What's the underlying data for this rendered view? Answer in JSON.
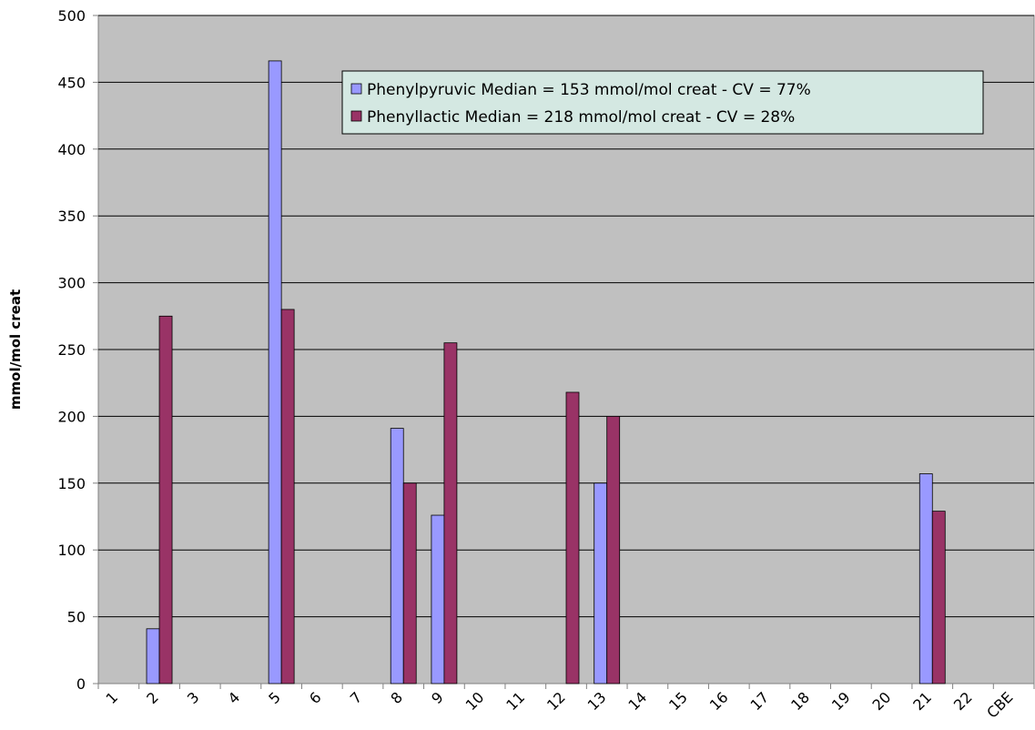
{
  "chart_data": {
    "type": "bar",
    "y_label": "mmol/mol creat",
    "categories": [
      "1",
      "2",
      "3",
      "4",
      "5",
      "6",
      "7",
      "8",
      "9",
      "10",
      "11",
      "12",
      "13",
      "14",
      "15",
      "16",
      "17",
      "18",
      "19",
      "20",
      "21",
      "22",
      "CBE"
    ],
    "series": [
      {
        "name": "Phenylpyruvic Median = 153 mmol/mol creat - CV = 77%",
        "color": "#9999ff",
        "values": [
          null,
          41,
          null,
          null,
          466,
          null,
          null,
          191,
          126,
          null,
          null,
          null,
          150,
          null,
          null,
          null,
          null,
          null,
          null,
          null,
          157,
          null,
          null
        ]
      },
      {
        "name": "Phenyllactic Median = 218 mmol/mol creat - CV = 28%",
        "color": "#993366",
        "values": [
          null,
          275,
          null,
          null,
          280,
          null,
          null,
          150,
          255,
          null,
          null,
          218,
          200,
          null,
          null,
          null,
          null,
          null,
          null,
          null,
          129,
          null,
          null
        ]
      }
    ],
    "ylim": [
      0,
      500
    ],
    "yticks": [
      0,
      50,
      100,
      150,
      200,
      250,
      300,
      350,
      400,
      450,
      500
    ],
    "grid": true,
    "legend": "top-right"
  }
}
